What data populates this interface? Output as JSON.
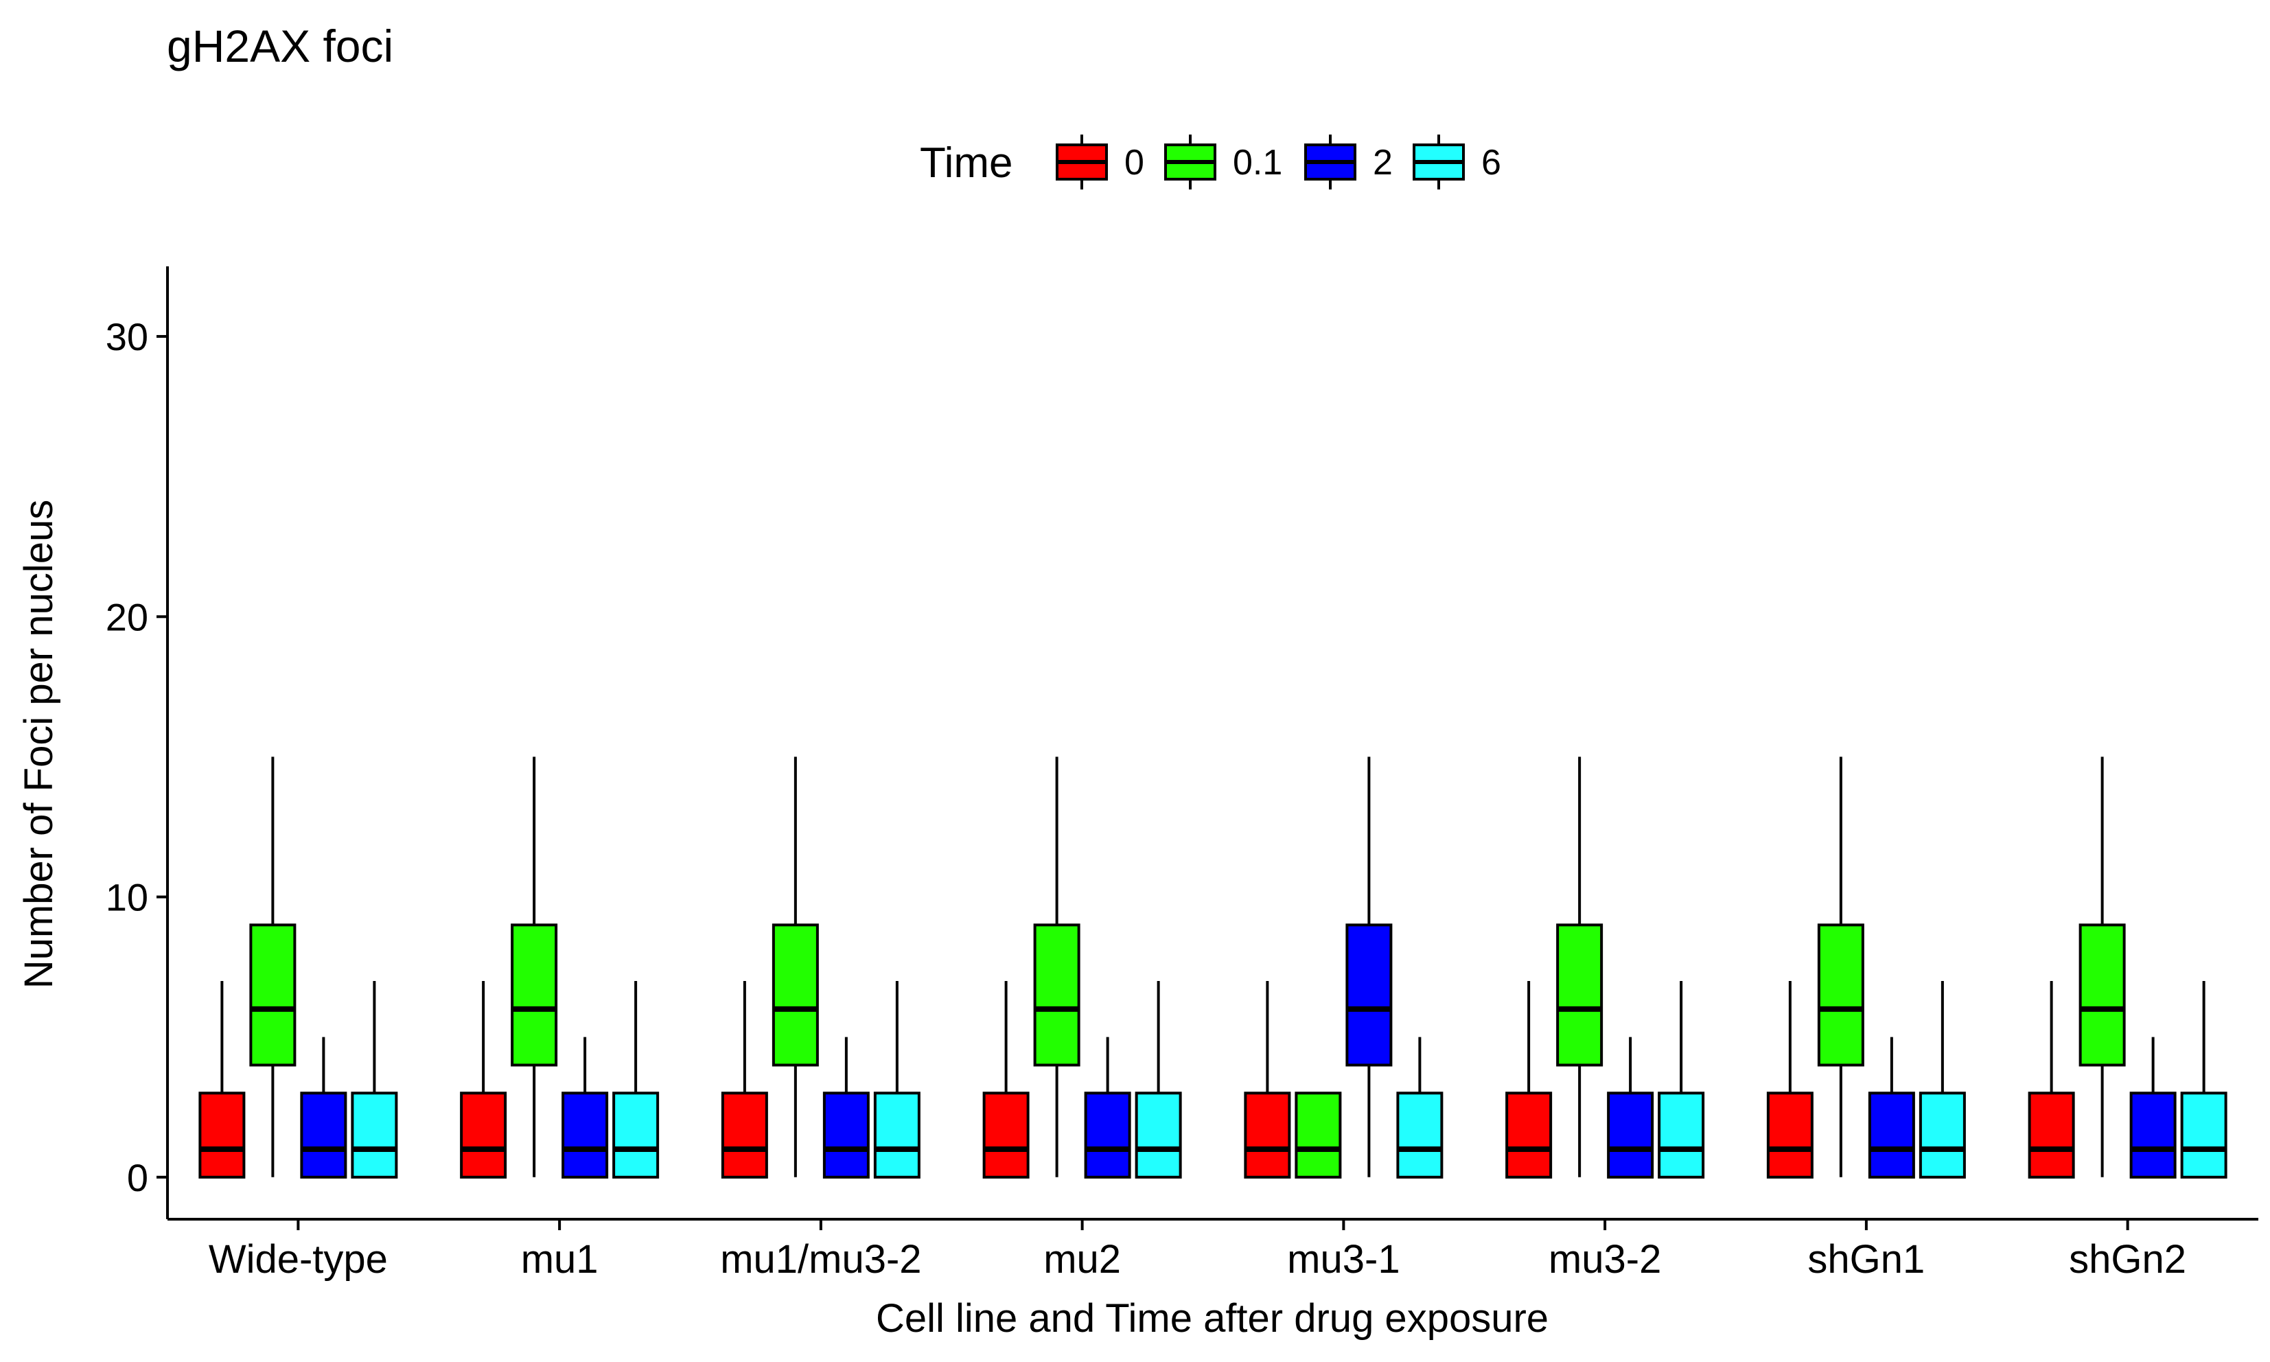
{
  "chart_data": {
    "type": "box",
    "title": "gH2AX foci",
    "xlabel": "Cell line and Time after drug exposure",
    "ylabel": "Number of Foci per nucleus",
    "ylim": [
      -1.5,
      32.5
    ],
    "yticks": [
      0,
      10,
      20,
      30
    ],
    "grid": false,
    "legend": {
      "title": "Time",
      "position": "top",
      "entries": [
        "0",
        "0.1",
        "2",
        "6"
      ]
    },
    "series": [
      {
        "name": "0",
        "color": "#FF0000"
      },
      {
        "name": "0.1",
        "color": "#22FF00"
      },
      {
        "name": "2",
        "color": "#0000FF"
      },
      {
        "name": "6",
        "color": "#22FFFF"
      }
    ],
    "categories": [
      {
        "label": "Wide-type",
        "boxes": [
          {
            "series": "0",
            "min": 0,
            "q1": 0,
            "median": 1,
            "q3": 3,
            "max": 7
          },
          {
            "series": "0.1",
            "min": 0,
            "q1": 4,
            "median": 6,
            "q3": 9,
            "max": 15
          },
          {
            "series": "2",
            "min": 0,
            "q1": 0,
            "median": 1,
            "q3": 3,
            "max": 5
          },
          {
            "series": "6",
            "min": 0,
            "q1": 0,
            "median": 1,
            "q3": 3,
            "max": 7
          }
        ]
      },
      {
        "label": "mu1",
        "boxes": [
          {
            "series": "0",
            "min": 0,
            "q1": 0,
            "median": 1,
            "q3": 3,
            "max": 7
          },
          {
            "series": "0.1",
            "min": 0,
            "q1": 4,
            "median": 6,
            "q3": 9,
            "max": 15
          },
          {
            "series": "2",
            "min": 0,
            "q1": 0,
            "median": 1,
            "q3": 3,
            "max": 5
          },
          {
            "series": "6",
            "min": 0,
            "q1": 0,
            "median": 1,
            "q3": 3,
            "max": 7
          }
        ]
      },
      {
        "label": "mu1/mu3-2",
        "boxes": [
          {
            "series": "0",
            "min": 0,
            "q1": 0,
            "median": 1,
            "q3": 3,
            "max": 7
          },
          {
            "series": "0.1",
            "min": 0,
            "q1": 4,
            "median": 6,
            "q3": 9,
            "max": 15
          },
          {
            "series": "2",
            "min": 0,
            "q1": 0,
            "median": 1,
            "q3": 3,
            "max": 5
          },
          {
            "series": "6",
            "min": 0,
            "q1": 0,
            "median": 1,
            "q3": 3,
            "max": 7
          }
        ]
      },
      {
        "label": "mu2",
        "boxes": [
          {
            "series": "0",
            "min": 0,
            "q1": 0,
            "median": 1,
            "q3": 3,
            "max": 7
          },
          {
            "series": "0.1",
            "min": 0,
            "q1": 4,
            "median": 6,
            "q3": 9,
            "max": 15
          },
          {
            "series": "2",
            "min": 0,
            "q1": 0,
            "median": 1,
            "q3": 3,
            "max": 5
          },
          {
            "series": "6",
            "min": 0,
            "q1": 0,
            "median": 1,
            "q3": 3,
            "max": 7
          }
        ]
      },
      {
        "label": "mu3-1",
        "boxes": [
          {
            "series": "0",
            "min": 0,
            "q1": 0,
            "median": 1,
            "q3": 3,
            "max": 7
          },
          {
            "series": "0.1",
            "min": 0,
            "q1": 0,
            "median": 1,
            "q3": 3,
            "max": 3
          },
          {
            "series": "2",
            "min": 0,
            "q1": 4,
            "median": 6,
            "q3": 9,
            "max": 15
          },
          {
            "series": "6",
            "min": 0,
            "q1": 0,
            "median": 1,
            "q3": 3,
            "max": 5
          }
        ]
      },
      {
        "label": "mu3-2",
        "boxes": [
          {
            "series": "0",
            "min": 0,
            "q1": 0,
            "median": 1,
            "q3": 3,
            "max": 7
          },
          {
            "series": "0.1",
            "min": 0,
            "q1": 4,
            "median": 6,
            "q3": 9,
            "max": 15
          },
          {
            "series": "2",
            "min": 0,
            "q1": 0,
            "median": 1,
            "q3": 3,
            "max": 5
          },
          {
            "series": "6",
            "min": 0,
            "q1": 0,
            "median": 1,
            "q3": 3,
            "max": 7
          }
        ]
      },
      {
        "label": "shGn1",
        "boxes": [
          {
            "series": "0",
            "min": 0,
            "q1": 0,
            "median": 1,
            "q3": 3,
            "max": 7
          },
          {
            "series": "0.1",
            "min": 0,
            "q1": 4,
            "median": 6,
            "q3": 9,
            "max": 15
          },
          {
            "series": "2",
            "min": 0,
            "q1": 0,
            "median": 1,
            "q3": 3,
            "max": 5
          },
          {
            "series": "6",
            "min": 0,
            "q1": 0,
            "median": 1,
            "q3": 3,
            "max": 7
          }
        ]
      },
      {
        "label": "shGn2",
        "boxes": [
          {
            "series": "0",
            "min": 0,
            "q1": 0,
            "median": 1,
            "q3": 3,
            "max": 7
          },
          {
            "series": "0.1",
            "min": 0,
            "q1": 4,
            "median": 6,
            "q3": 9,
            "max": 15
          },
          {
            "series": "2",
            "min": 0,
            "q1": 0,
            "median": 1,
            "q3": 3,
            "max": 5
          },
          {
            "series": "6",
            "min": 0,
            "q1": 0,
            "median": 1,
            "q3": 3,
            "max": 7
          }
        ]
      }
    ]
  }
}
